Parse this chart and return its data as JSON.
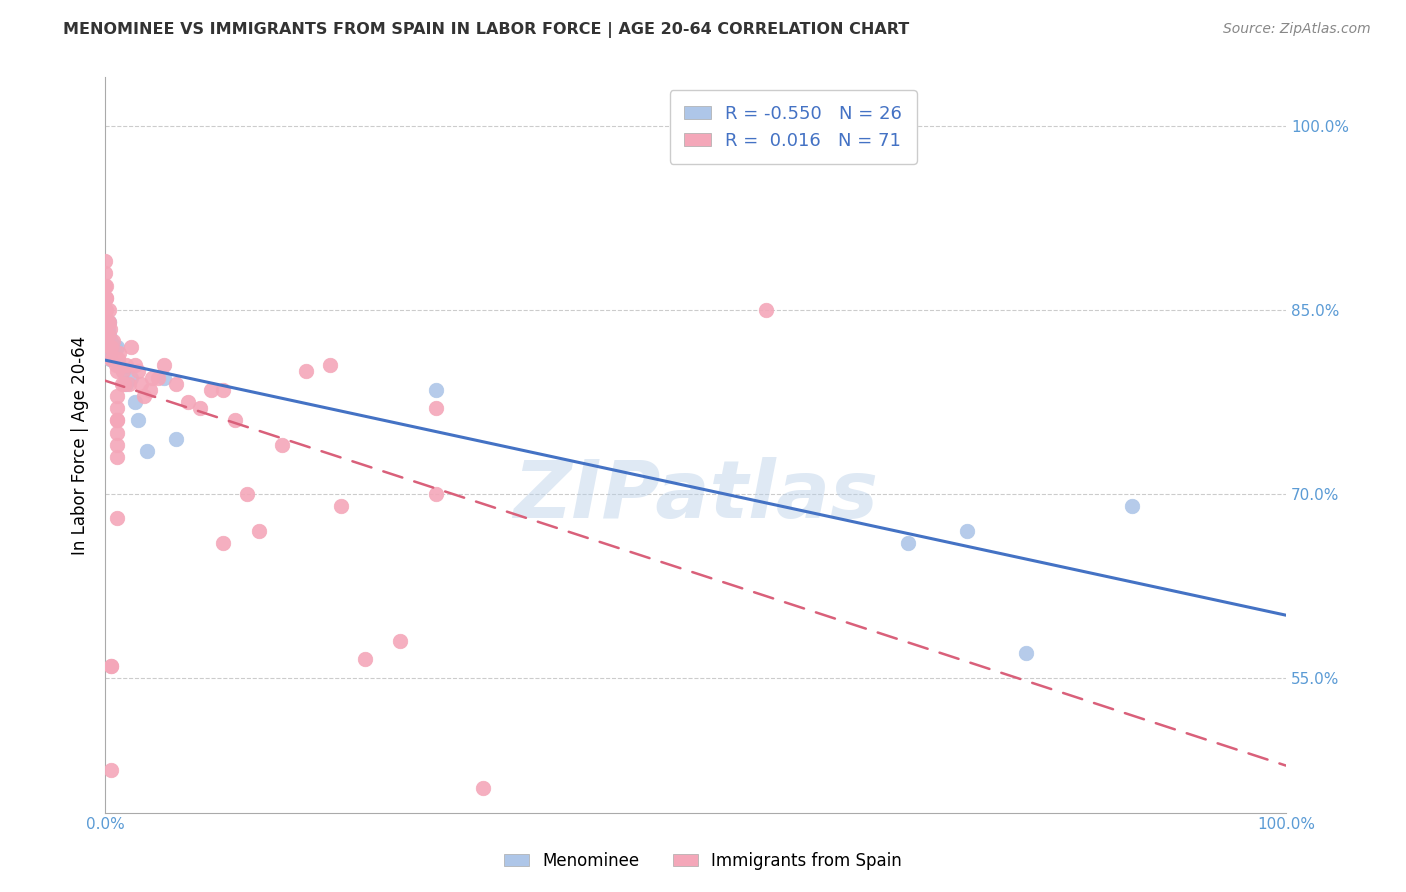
{
  "title": "MENOMINEE VS IMMIGRANTS FROM SPAIN IN LABOR FORCE | AGE 20-64 CORRELATION CHART",
  "source": "Source: ZipAtlas.com",
  "ylabel": "In Labor Force | Age 20-64",
  "xlim": [
    0.0,
    1.0
  ],
  "ylim": [
    0.44,
    1.04
  ],
  "yticks": [
    0.55,
    0.7,
    0.85,
    1.0
  ],
  "ytick_labels": [
    "55.0%",
    "70.0%",
    "85.0%",
    "100.0%"
  ],
  "xticks": [
    0.0,
    0.1,
    0.2,
    0.3,
    0.4,
    0.5,
    0.6,
    0.7,
    0.8,
    0.9,
    1.0
  ],
  "xtick_labels": [
    "0.0%",
    "",
    "",
    "",
    "",
    "",
    "",
    "",
    "",
    "",
    "100.0%"
  ],
  "legend_blue_r": "-0.550",
  "legend_blue_n": "26",
  "legend_pink_r": "0.016",
  "legend_pink_n": "71",
  "blue_color": "#aec6e8",
  "pink_color": "#f4a7b9",
  "blue_line_color": "#4472c4",
  "pink_line_color": "#d9607a",
  "watermark": "ZIPatlas",
  "blue_x": [
    0.002,
    0.002,
    0.002,
    0.002,
    0.003,
    0.003,
    0.003,
    0.004,
    0.005,
    0.006,
    0.008,
    0.01,
    0.012,
    0.015,
    0.018,
    0.022,
    0.025,
    0.028,
    0.035,
    0.05,
    0.06,
    0.28,
    0.68,
    0.73,
    0.78,
    0.87
  ],
  "blue_y": [
    0.84,
    0.835,
    0.825,
    0.82,
    0.84,
    0.83,
    0.82,
    0.81,
    0.825,
    0.82,
    0.82,
    0.82,
    0.805,
    0.8,
    0.79,
    0.795,
    0.775,
    0.76,
    0.735,
    0.795,
    0.745,
    0.785,
    0.66,
    0.67,
    0.57,
    0.69
  ],
  "pink_x": [
    0.0,
    0.0,
    0.0,
    0.0,
    0.0,
    0.0,
    0.0,
    0.001,
    0.001,
    0.001,
    0.001,
    0.001,
    0.002,
    0.002,
    0.002,
    0.003,
    0.003,
    0.004,
    0.005,
    0.005,
    0.006,
    0.007,
    0.008,
    0.009,
    0.01,
    0.011,
    0.012,
    0.014,
    0.015,
    0.016,
    0.018,
    0.02,
    0.022,
    0.025,
    0.028,
    0.03,
    0.033,
    0.038,
    0.04,
    0.045,
    0.05,
    0.06,
    0.07,
    0.08,
    0.09,
    0.1,
    0.11,
    0.12,
    0.13,
    0.15,
    0.17,
    0.19,
    0.2,
    0.22,
    0.25,
    0.28,
    0.32,
    0.005,
    0.005,
    0.005,
    0.28,
    0.56,
    0.1,
    0.01,
    0.01,
    0.01,
    0.01,
    0.01,
    0.01,
    0.01,
    0.01
  ],
  "pink_y": [
    0.87,
    0.88,
    0.89,
    0.86,
    0.85,
    0.84,
    0.83,
    0.87,
    0.86,
    0.85,
    0.84,
    0.86,
    0.84,
    0.83,
    0.82,
    0.85,
    0.84,
    0.835,
    0.82,
    0.81,
    0.81,
    0.825,
    0.81,
    0.805,
    0.8,
    0.81,
    0.815,
    0.79,
    0.8,
    0.79,
    0.805,
    0.79,
    0.82,
    0.805,
    0.8,
    0.79,
    0.78,
    0.785,
    0.795,
    0.795,
    0.805,
    0.79,
    0.775,
    0.77,
    0.785,
    0.785,
    0.76,
    0.7,
    0.67,
    0.74,
    0.8,
    0.805,
    0.69,
    0.565,
    0.58,
    0.77,
    0.46,
    0.475,
    0.56,
    0.56,
    0.7,
    0.85,
    0.66,
    0.68,
    0.77,
    0.76,
    0.75,
    0.73,
    0.74,
    0.76,
    0.78
  ]
}
